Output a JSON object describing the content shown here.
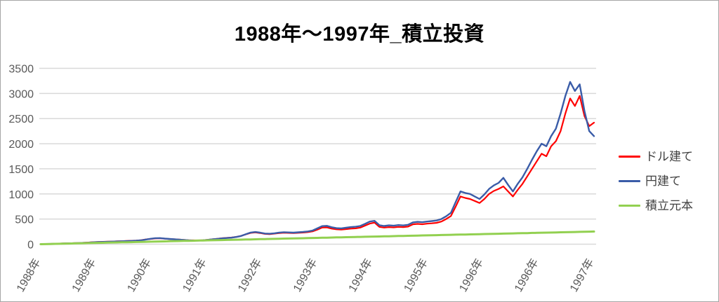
{
  "page": {
    "background": "#ffffff",
    "border_color": "#a6a6a6"
  },
  "chart_data": {
    "type": "line",
    "title": "1988年～1997年_積立投資",
    "xlabel": "",
    "ylabel": "",
    "ylim": [
      0,
      3500
    ],
    "y_ticks": [
      3500,
      3000,
      2500,
      2000,
      1500,
      1000,
      500,
      0
    ],
    "x_tick_labels": [
      "1988年",
      "1989年",
      "1990年",
      "1991年",
      "1992年",
      "1993年",
      "1994年",
      "1995年",
      "1996年",
      "1996年",
      "1997年"
    ],
    "grid": "horizontal",
    "gridline_color": "#d9d9d9",
    "axis_label_color": "#595959",
    "legend_position": "right",
    "series": [
      {
        "name": "ドル建て",
        "color": "#ff0000",
        "values": [
          2,
          4,
          6,
          9,
          12,
          15,
          18,
          21,
          24,
          28,
          33,
          40,
          44,
          47,
          50,
          53,
          57,
          60,
          64,
          68,
          73,
          80,
          95,
          105,
          115,
          118,
          110,
          103,
          98,
          92,
          86,
          80,
          76,
          75,
          80,
          88,
          98,
          108,
          118,
          125,
          132,
          145,
          165,
          195,
          225,
          235,
          222,
          205,
          200,
          210,
          222,
          228,
          224,
          220,
          226,
          232,
          240,
          255,
          290,
          330,
          335,
          310,
          295,
          290,
          300,
          310,
          315,
          330,
          370,
          410,
          430,
          345,
          330,
          340,
          335,
          345,
          340,
          350,
          395,
          405,
          398,
          408,
          415,
          425,
          450,
          500,
          560,
          750,
          950,
          920,
          900,
          860,
          820,
          900,
          1000,
          1060,
          1100,
          1150,
          1050,
          950,
          1080,
          1200,
          1350,
          1500,
          1650,
          1800,
          1750,
          1950,
          2050,
          2250,
          2600,
          2900,
          2750,
          2950,
          2550,
          2350,
          2420
        ]
      },
      {
        "name": "円建て",
        "color": "#3a5ca8",
        "values": [
          2,
          4,
          6,
          8,
          11,
          14,
          17,
          20,
          23,
          27,
          31,
          38,
          42,
          45,
          48,
          51,
          55,
          58,
          62,
          65,
          70,
          77,
          92,
          108,
          120,
          122,
          112,
          104,
          97,
          90,
          83,
          76,
          72,
          71,
          77,
          86,
          96,
          106,
          116,
          123,
          130,
          143,
          163,
          198,
          232,
          242,
          230,
          212,
          208,
          218,
          232,
          238,
          234,
          230,
          237,
          244,
          254,
          272,
          315,
          360,
          365,
          338,
          320,
          315,
          328,
          340,
          347,
          362,
          405,
          450,
          465,
          378,
          362,
          375,
          368,
          380,
          374,
          386,
          432,
          445,
          438,
          450,
          460,
          472,
          500,
          555,
          625,
          840,
          1050,
          1020,
          1000,
          950,
          900,
          990,
          1100,
          1170,
          1220,
          1320,
          1180,
          1050,
          1200,
          1330,
          1500,
          1680,
          1850,
          2000,
          1950,
          2150,
          2300,
          2600,
          2950,
          3230,
          3050,
          3180,
          2650,
          2250,
          2150
        ]
      },
      {
        "name": "積立元本",
        "color": "#92d050",
        "values": [
          0,
          2,
          4,
          7,
          9,
          11,
          13,
          15,
          17,
          20,
          22,
          24,
          26,
          28,
          30,
          33,
          35,
          37,
          39,
          41,
          43,
          46,
          48,
          50,
          52,
          54,
          56,
          59,
          61,
          63,
          65,
          67,
          69,
          72,
          74,
          76,
          78,
          80,
          82,
          85,
          87,
          89,
          91,
          93,
          95,
          98,
          100,
          102,
          104,
          106,
          109,
          111,
          113,
          115,
          117,
          119,
          122,
          124,
          126,
          128,
          130,
          132,
          135,
          137,
          139,
          141,
          143,
          145,
          148,
          150,
          152,
          154,
          156,
          158,
          161,
          163,
          165,
          167,
          169,
          171,
          174,
          176,
          178,
          180,
          182,
          184,
          187,
          189,
          191,
          193,
          195,
          197,
          200,
          202,
          204,
          206,
          208,
          210,
          213,
          215,
          217,
          219,
          221,
          224,
          226,
          228,
          230,
          232,
          234,
          237,
          239,
          241,
          243,
          245,
          247,
          250,
          252
        ]
      }
    ]
  }
}
